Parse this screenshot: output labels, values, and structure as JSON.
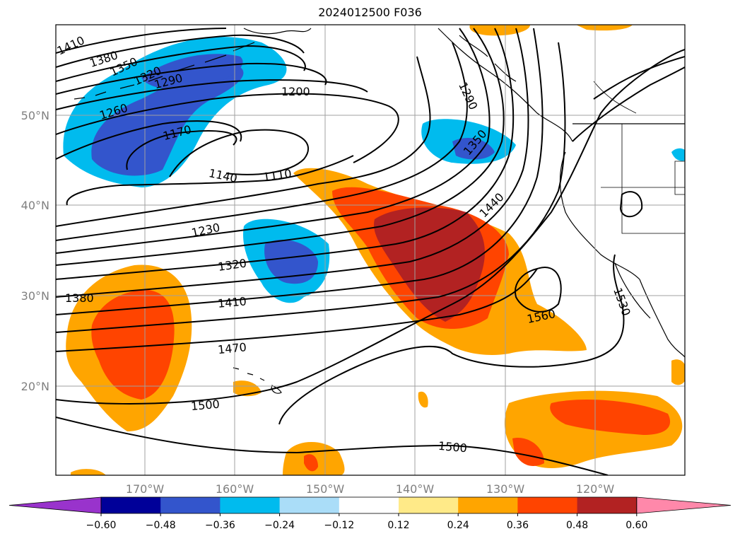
{
  "title": "2024012500 F036",
  "map": {
    "lat_labels": [
      "50°N",
      "40°N",
      "30°N",
      "20°N"
    ],
    "lon_labels": [
      "170°W",
      "160°W",
      "150°W",
      "140°W",
      "130°W",
      "120°W"
    ],
    "contour_labels": [
      "1410",
      "1380",
      "1350",
      "1320",
      "1290",
      "1260",
      "1200",
      "1170",
      "1140",
      "1110",
      "1290",
      "1350",
      "1440",
      "1230",
      "1320",
      "1380",
      "1410",
      "1470",
      "1500",
      "1500",
      "1560",
      "1530"
    ]
  },
  "colorbar": {
    "colors": [
      "#9933cc",
      "#000099",
      "#3355cc",
      "#00bbee",
      "#aaddf8",
      "#ffffff",
      "#ffea88",
      "#ffa500",
      "#ff4400",
      "#b22222",
      "#ff88aa"
    ],
    "tick_labels": [
      "−0.60",
      "−0.48",
      "−0.36",
      "−0.24",
      "−0.12",
      "0.12",
      "0.24",
      "0.36",
      "0.48",
      "0.60"
    ]
  }
}
